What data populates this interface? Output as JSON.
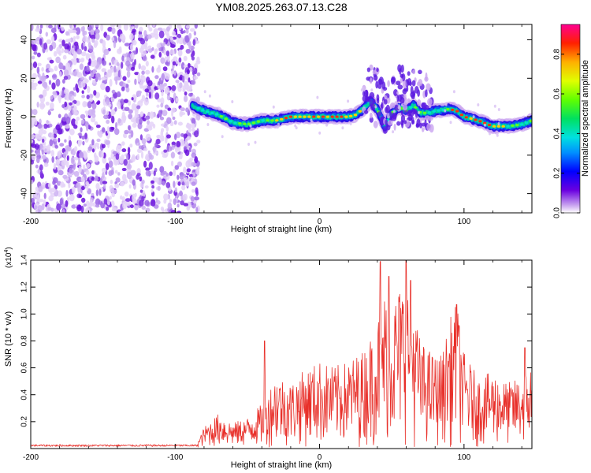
{
  "title": "YM08.2025.263.07.13.C28",
  "chart_data": [
    {
      "type": "heatmap",
      "name": "spectrogram",
      "xlabel": "Height of straight line (km)",
      "ylabel": "Frequency (Hz)",
      "xlim": [
        -200,
        147
      ],
      "ylim": [
        -50,
        48
      ],
      "xticks": [
        -200,
        -100,
        0,
        100
      ],
      "yticks": [
        -40,
        -20,
        0,
        20,
        40
      ],
      "noise_region_x": [
        -200,
        -87
      ],
      "ridge": {
        "x": [
          -88,
          -80,
          -70,
          -60,
          -50,
          -40,
          -30,
          -20,
          -10,
          0,
          10,
          20,
          25,
          30,
          35,
          40,
          45,
          50,
          55,
          60,
          65,
          70,
          75,
          80,
          90,
          95,
          100,
          110,
          120,
          130,
          140,
          147
        ],
        "y": [
          6,
          3,
          1,
          -3,
          -4,
          -2,
          -2,
          0,
          0,
          0,
          0,
          0,
          1,
          4,
          8,
          4,
          -5,
          2,
          5,
          3,
          6,
          2,
          2,
          3,
          4,
          3,
          0,
          -2,
          -5,
          -5,
          -4,
          -2
        ]
      },
      "colorbar": {
        "label": "Normalized spectral amplitude",
        "range": [
          0,
          0.95
        ],
        "ticks": [
          0.0,
          0.2,
          0.4,
          0.6,
          0.8
        ],
        "tick_labels": [
          "0.0",
          "0.2",
          "0.4",
          "0.6",
          "0.8"
        ]
      }
    },
    {
      "type": "line",
      "name": "snr",
      "xlabel": "Height of straight line (km)",
      "ylabel": "SNR (10 * v/v)",
      "multiplier_label": "(x10",
      "multiplier_exp": "4",
      "xlim": [
        -200,
        147
      ],
      "ylim": [
        0,
        14000
      ],
      "xticks": [
        -200,
        -100,
        0,
        100
      ],
      "yticks": [
        2000,
        4000,
        6000,
        8000,
        10000,
        12000,
        14000
      ],
      "ytick_labels": [
        "0.2",
        "0.4",
        "0.6",
        "0.8",
        "1.0",
        "1.2",
        "1.4"
      ],
      "color": "#e8302a",
      "envelope": {
        "x": [
          -200,
          -100,
          -85,
          -80,
          -70,
          -60,
          -50,
          -40,
          -30,
          -20,
          -10,
          0,
          10,
          20,
          30,
          35,
          40,
          45,
          50,
          55,
          60,
          65,
          70,
          75,
          80,
          85,
          90,
          95,
          100,
          110,
          120,
          130,
          140,
          147
        ],
        "y": [
          200,
          200,
          250,
          1500,
          2500,
          1800,
          2200,
          3200,
          5500,
          4800,
          5800,
          6400,
          6000,
          6400,
          7200,
          8200,
          9600,
          11500,
          10800,
          12000,
          12600,
          10600,
          7800,
          7400,
          6800,
          7000,
          9500,
          10800,
          7000,
          5200,
          5600,
          4800,
          5200,
          6400
        ]
      },
      "spikes": [
        {
          "x": -38,
          "y": 8000
        },
        {
          "x": 42,
          "y": 13900
        },
        {
          "x": 48,
          "y": 12800
        },
        {
          "x": 60,
          "y": 14000
        },
        {
          "x": 63,
          "y": 12500
        },
        {
          "x": 95,
          "y": 10700
        },
        {
          "x": 142,
          "y": 7500
        }
      ]
    }
  ]
}
